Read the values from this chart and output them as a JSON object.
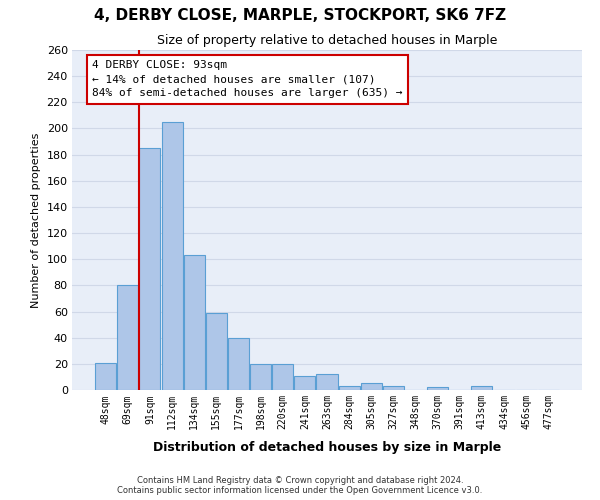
{
  "title": "4, DERBY CLOSE, MARPLE, STOCKPORT, SK6 7FZ",
  "subtitle": "Size of property relative to detached houses in Marple",
  "xlabel": "Distribution of detached houses by size in Marple",
  "ylabel": "Number of detached properties",
  "bar_labels": [
    "48sqm",
    "69sqm",
    "91sqm",
    "112sqm",
    "134sqm",
    "155sqm",
    "177sqm",
    "198sqm",
    "220sqm",
    "241sqm",
    "263sqm",
    "284sqm",
    "305sqm",
    "327sqm",
    "348sqm",
    "370sqm",
    "391sqm",
    "413sqm",
    "434sqm",
    "456sqm",
    "477sqm"
  ],
  "bar_values": [
    21,
    80,
    185,
    205,
    103,
    59,
    40,
    20,
    20,
    11,
    12,
    3,
    5,
    3,
    0,
    2,
    0,
    3,
    0,
    0,
    0
  ],
  "bar_color": "#aec6e8",
  "bar_edge_color": "#5a9fd4",
  "grid_color": "#d0d8e8",
  "background_color": "#e8eef8",
  "ylim_max": 260,
  "yticks": [
    0,
    20,
    40,
    60,
    80,
    100,
    120,
    140,
    160,
    180,
    200,
    220,
    240,
    260
  ],
  "annotation_label": "4 DERBY CLOSE: 93sqm",
  "annotation_line1": "← 14% of detached houses are smaller (107)",
  "annotation_line2": "84% of semi-detached houses are larger (635) →",
  "red_line_x": 1.5,
  "footer_line1": "Contains HM Land Registry data © Crown copyright and database right 2024.",
  "footer_line2": "Contains public sector information licensed under the Open Government Licence v3.0."
}
